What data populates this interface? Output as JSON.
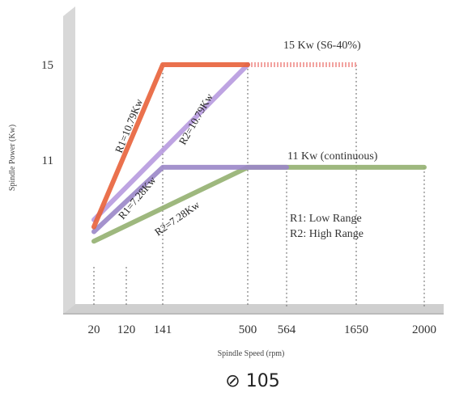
{
  "chart_data": {
    "type": "line",
    "title": "",
    "xlabel": "Spindle Speed (rpm)",
    "ylabel": "Spindle Power (Kw)",
    "x_ticks": [
      20,
      120,
      141,
      500,
      564,
      1650,
      2000
    ],
    "y_ticks": [
      15,
      11
    ],
    "series": [
      {
        "name": "R1=10.79Kw",
        "color": "#e8623a",
        "points": [
          [
            20,
            8.2
          ],
          [
            141,
            15
          ],
          [
            500,
            15
          ]
        ]
      },
      {
        "name": "R2=10.79Kw",
        "color": "#b79adf",
        "points": [
          [
            20,
            8.5
          ],
          [
            500,
            15
          ]
        ]
      },
      {
        "name": "R1=7.28Kw",
        "color": "#9a86c8",
        "points": [
          [
            20,
            8.0
          ],
          [
            141,
            10.7
          ],
          [
            564,
            10.7
          ]
        ]
      },
      {
        "name": "R2=7.28Kw",
        "color": "#93b070",
        "points": [
          [
            20,
            7.6
          ],
          [
            500,
            10.7
          ],
          [
            2000,
            10.7
          ]
        ]
      }
    ],
    "continuations": [
      {
        "color": "#f2a3a0",
        "style": "dotted",
        "points": [
          [
            500,
            15
          ],
          [
            1650,
            15
          ]
        ]
      }
    ],
    "annotations": [
      {
        "text": "15 Kw (S6-40%)"
      },
      {
        "text": "11 Kw (continuous)"
      },
      {
        "text": "R1: Low Range"
      },
      {
        "text": "R2: High Range"
      }
    ],
    "footer": "⊘ 105"
  }
}
